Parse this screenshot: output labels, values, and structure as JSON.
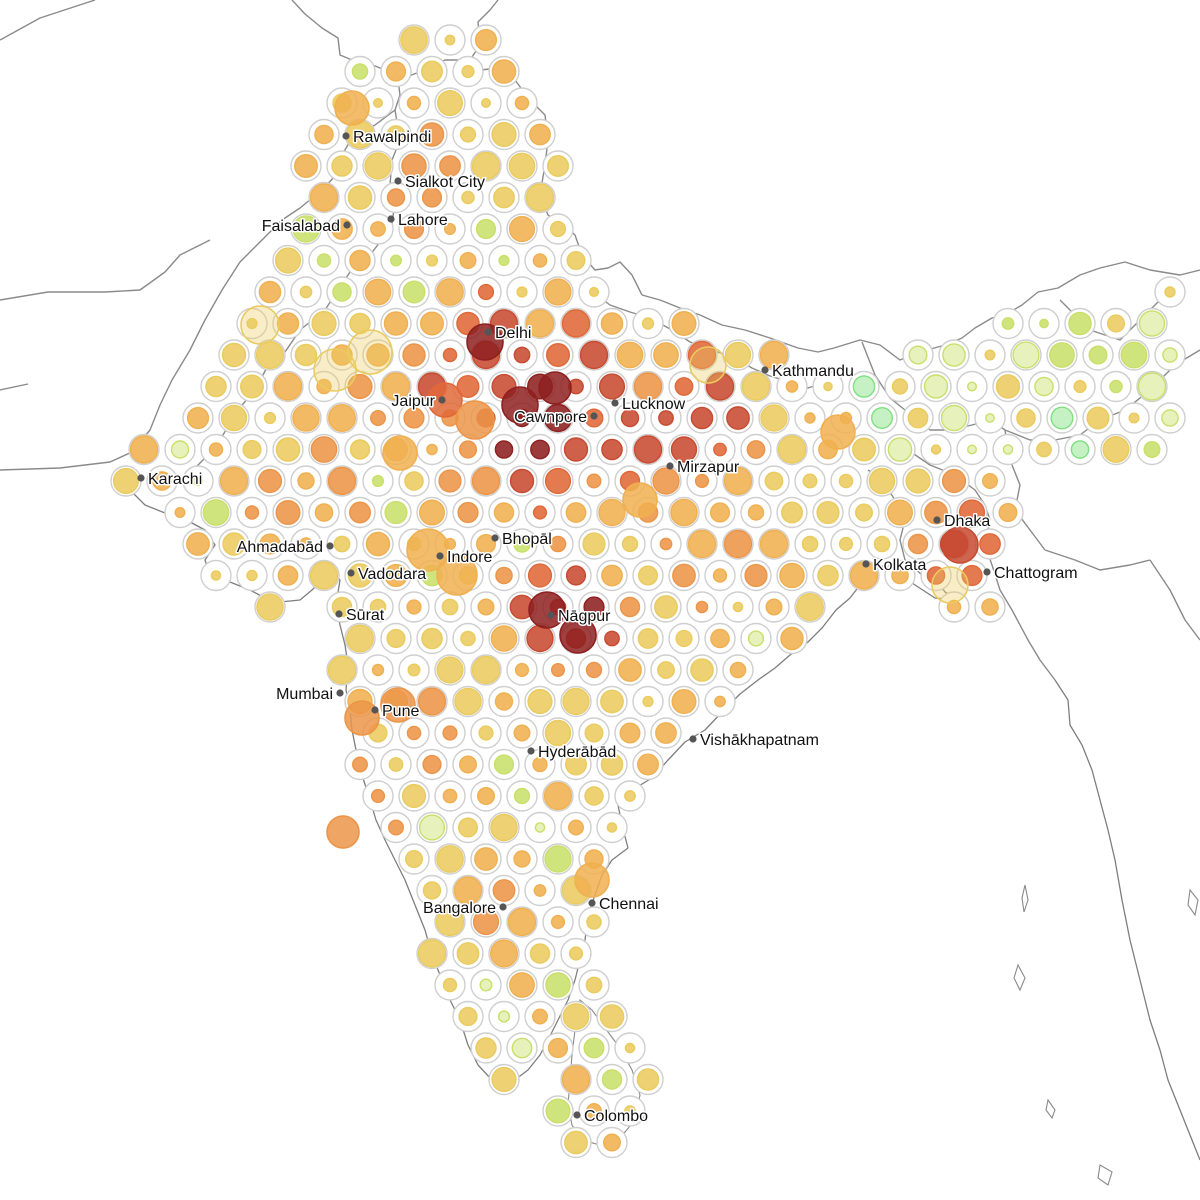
{
  "map": {
    "palette": {
      "ring": "#cfcfcf",
      "coast": "#7e7e7e",
      "city_marker": "#555555",
      "scale": [
        "#7fe07f",
        "#c8e06a",
        "#eacb5e",
        "#f0b050",
        "#ec9548",
        "#e06838",
        "#c84a30",
        "#8e2020"
      ]
    },
    "cities": [
      {
        "name": "Rawalpindi"
      },
      {
        "name": "Sialkot City"
      },
      {
        "name": "Faisalabad"
      },
      {
        "name": "Lahore"
      },
      {
        "name": "Delhi"
      },
      {
        "name": "Kathmandu"
      },
      {
        "name": "Jaipur"
      },
      {
        "name": "Cawnpore"
      },
      {
        "name": "Lucknow"
      },
      {
        "name": "Karachi"
      },
      {
        "name": "Mirzapur"
      },
      {
        "name": "Dhaka"
      },
      {
        "name": "Bhopāl"
      },
      {
        "name": "Ahmadabād"
      },
      {
        "name": "Indore"
      },
      {
        "name": "Kolkata"
      },
      {
        "name": "Chattogram"
      },
      {
        "name": "Vadodara"
      },
      {
        "name": "Nāgpur"
      },
      {
        "name": "Sūrat"
      },
      {
        "name": "Mumbai"
      },
      {
        "name": "Pune"
      },
      {
        "name": "Vishākhapatnam"
      },
      {
        "name": "Hyderābād"
      },
      {
        "name": "Bangalore"
      },
      {
        "name": "Chennai"
      },
      {
        "name": "Colombo"
      }
    ]
  }
}
